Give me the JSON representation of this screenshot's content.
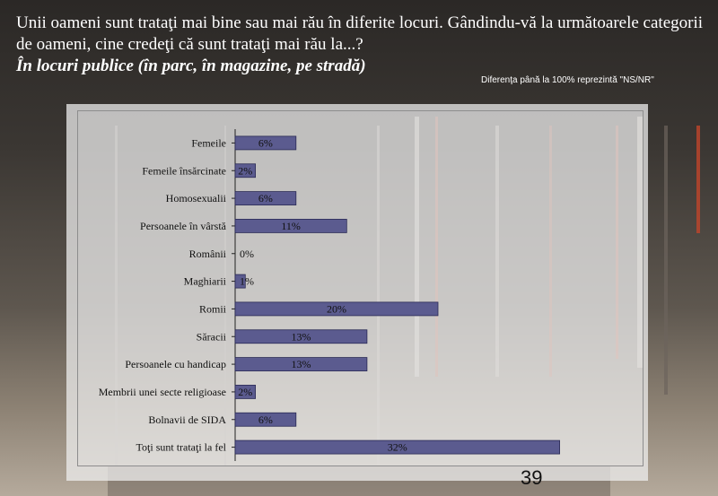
{
  "heading": {
    "question": "Unii oameni sunt trataţi mai bine sau mai rău în diferite locuri. Gândindu-vă la următoarele categorii de oameni, cine credeţi că sunt trataţi mai rău la...?",
    "subtitle": "În locuri publice (în parc, în magazine, pe stradă)"
  },
  "note": "Diferenţa până la 100% reprezintă  \"NS/NR\"",
  "page_number": "39",
  "colors": {
    "bar": "#5b5b8f",
    "bar_border": "#2a2a55",
    "panel": "#eeeeee",
    "heading_text": "#ffffff"
  },
  "chart_data": {
    "type": "bar",
    "orientation": "horizontal",
    "categories": [
      "Femeile",
      "Femeile însărcinate",
      "Homosexualii",
      "Persoanele în vârstă",
      "Românii",
      "Maghiarii",
      "Romii",
      "Săracii",
      "Persoanele cu handicap",
      "Membrii unei secte religioase",
      "Bolnavii de SIDA",
      "Toţi sunt trataţi la fel"
    ],
    "values": [
      6,
      2,
      6,
      11,
      0,
      1,
      20,
      13,
      13,
      2,
      6,
      32
    ],
    "data_labels": [
      "6%",
      "2%",
      "6%",
      "11%",
      "0%",
      "1%",
      "20%",
      "13%",
      "13%",
      "2%",
      "6%",
      "32%"
    ],
    "xlim": [
      0,
      40
    ],
    "grid": false,
    "legend": "none"
  }
}
